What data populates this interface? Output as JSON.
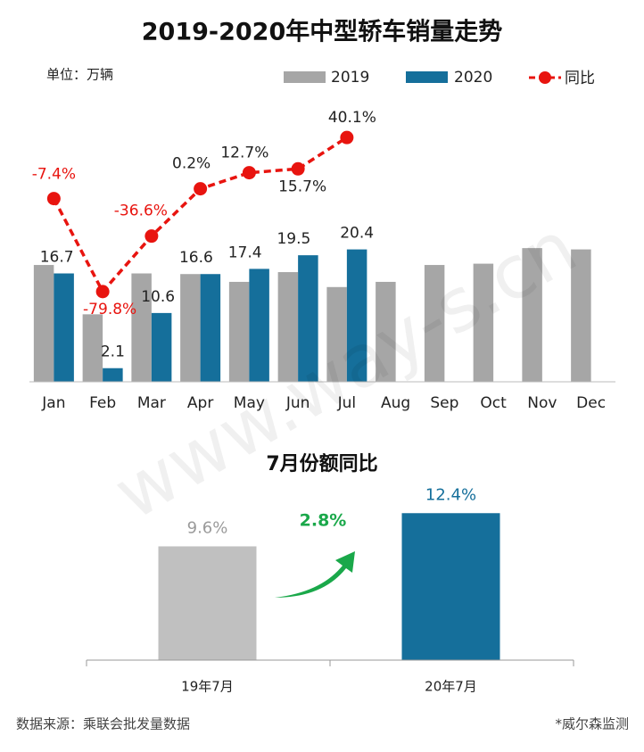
{
  "chart_data": [
    {
      "type": "bar",
      "title": "2019-2020年中型轿车销量走势",
      "subtitle": "单位：万辆",
      "categories": [
        "Jan",
        "Feb",
        "Mar",
        "Apr",
        "May",
        "Jun",
        "Jul",
        "Aug",
        "Sep",
        "Oct",
        "Nov",
        "Dec"
      ],
      "series": [
        {
          "name": "2019",
          "color": "#a6a6a6",
          "values": [
            18.0,
            10.4,
            16.7,
            16.6,
            15.4,
            16.9,
            14.6,
            15.4,
            18.0,
            18.2,
            20.6,
            20.4
          ]
        },
        {
          "name": "2020",
          "color": "#156f9b",
          "values": [
            16.7,
            2.1,
            10.6,
            16.6,
            17.4,
            19.5,
            20.4,
            null,
            null,
            null,
            null,
            null
          ]
        },
        {
          "name": "同比",
          "color": "#e8140f",
          "type": "line",
          "axis": "y2",
          "values": [
            -7.4,
            -79.8,
            -36.6,
            0.2,
            12.7,
            15.7,
            40.1,
            null,
            null,
            null,
            null,
            null
          ],
          "value_labels": [
            "-7.4%",
            "-79.8%",
            "-36.6%",
            "0.2%",
            "12.7%",
            "15.7%",
            "40.1%",
            null,
            null,
            null,
            null,
            null
          ]
        }
      ],
      "ylim": [
        0,
        40
      ],
      "y2lim": [
        -150,
        52
      ]
    },
    {
      "type": "bar",
      "title": "7月份额同比",
      "categories": [
        "19年7月",
        "20年7月"
      ],
      "values": [
        9.6,
        12.4
      ],
      "value_labels": [
        "9.6%",
        "12.4%"
      ],
      "colors": [
        "#c0c0c0",
        "#156f9b"
      ],
      "label_colors": [
        "#9a9a9a",
        "#156f9b"
      ],
      "annotation": "2.8%",
      "ylim": [
        0,
        14
      ]
    }
  ],
  "source": "数据来源：乘联会批发量数据",
  "note": "*威尔森监测",
  "watermark": "www.way-s.cn"
}
